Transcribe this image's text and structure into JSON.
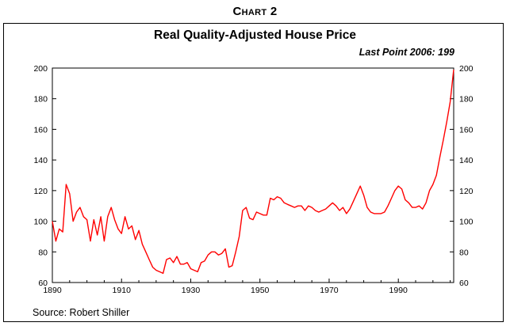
{
  "header": {
    "label_first": "C",
    "label_rest": "HART",
    "label_num": "2"
  },
  "footer": {
    "source": "Source:  Robert Shiller"
  },
  "chart_data": {
    "type": "line",
    "title": "Real Quality-Adjusted House Price",
    "annotation": "Last Point 2006: 199",
    "xlim": [
      1890,
      2006
    ],
    "ylim": [
      60,
      200
    ],
    "x_ticks": [
      1890,
      1910,
      1930,
      1950,
      1970,
      1990
    ],
    "y_ticks": [
      60,
      80,
      100,
      120,
      140,
      160,
      180,
      200
    ],
    "grid": false,
    "series_color": "#ff0000",
    "series": [
      {
        "x": [
          1890,
          1891,
          1892,
          1893,
          1894,
          1895,
          1896,
          1897,
          1898,
          1899,
          1900,
          1901,
          1902,
          1903,
          1904,
          1905,
          1906,
          1907,
          1908,
          1909,
          1910,
          1911,
          1912,
          1913,
          1914,
          1915,
          1916,
          1917,
          1918,
          1919,
          1920,
          1921,
          1922,
          1923,
          1924,
          1925,
          1926,
          1927,
          1928,
          1929,
          1930,
          1931,
          1932,
          1933,
          1934,
          1935,
          1936,
          1937,
          1938,
          1939,
          1940,
          1941,
          1942,
          1943,
          1944,
          1945,
          1946,
          1947,
          1948,
          1949,
          1950,
          1951,
          1952,
          1953,
          1954,
          1955,
          1956,
          1957,
          1958,
          1959,
          1960,
          1961,
          1962,
          1963,
          1964,
          1965,
          1966,
          1967,
          1968,
          1969,
          1970,
          1971,
          1972,
          1973,
          1974,
          1975,
          1976,
          1977,
          1978,
          1979,
          1980,
          1981,
          1982,
          1983,
          1984,
          1985,
          1986,
          1987,
          1988,
          1989,
          1990,
          1991,
          1992,
          1993,
          1994,
          1995,
          1996,
          1997,
          1998,
          1999,
          2000,
          2001,
          2002,
          2003,
          2004,
          2005,
          2006
        ],
        "values": [
          100,
          87,
          95,
          93,
          124,
          118,
          100,
          106,
          109,
          103,
          101,
          87,
          101,
          91,
          103,
          87,
          103,
          109,
          101,
          95,
          92,
          103,
          95,
          97,
          88,
          94,
          85,
          80,
          75,
          70,
          68,
          67,
          66,
          75,
          76,
          73,
          77,
          72,
          72,
          73,
          69,
          68,
          67,
          73,
          74,
          78,
          80,
          80,
          78,
          79,
          82,
          70,
          71,
          80,
          90,
          107,
          109,
          102,
          101,
          106,
          105,
          104,
          104,
          115,
          114,
          116,
          115,
          112,
          111,
          110,
          109,
          110,
          110,
          107,
          110,
          109,
          107,
          106,
          107,
          108,
          110,
          112,
          110,
          107,
          109,
          105,
          108,
          113,
          118,
          123,
          117,
          109,
          106,
          105,
          105,
          105,
          106,
          110,
          115,
          120,
          123,
          121,
          114,
          112,
          109,
          109,
          110,
          108,
          112,
          120,
          124,
          130,
          142,
          153,
          165,
          178,
          199
        ]
      }
    ]
  }
}
